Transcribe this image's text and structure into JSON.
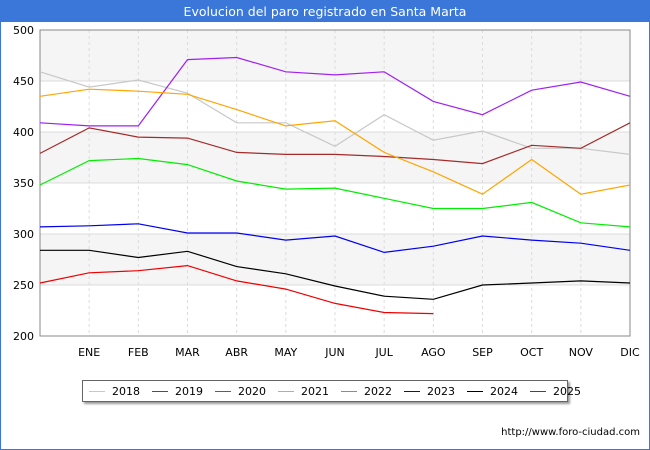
{
  "header": {
    "title": "Evolucion del paro registrado en Santa Marta"
  },
  "source": "http://www.foro-ciudad.com",
  "chart_data": {
    "type": "line",
    "x_categories": [
      "",
      "ENE",
      "FEB",
      "MAR",
      "ABR",
      "MAY",
      "JUN",
      "JUL",
      "AGO",
      "SEP",
      "OCT",
      "NOV",
      "DIC"
    ],
    "ylim": [
      200,
      500
    ],
    "yticks": [
      200,
      250,
      300,
      350,
      400,
      450,
      500
    ],
    "grid": true,
    "legend_position": "bottom",
    "series": [
      {
        "name": "2018",
        "color": "#c8c8c8",
        "values": [
          459,
          444,
          451,
          438,
          409,
          409,
          386,
          417,
          392,
          401,
          384,
          384,
          378
        ]
      },
      {
        "name": "2019",
        "color": "#a52a2a",
        "values": [
          379,
          404,
          395,
          394,
          380,
          378,
          378,
          376,
          373,
          369,
          387,
          384,
          409
        ]
      },
      {
        "name": "2020",
        "color": "#a020f0",
        "values": [
          409,
          406,
          406,
          471,
          473,
          459,
          456,
          459,
          430,
          417,
          441,
          449,
          435
        ]
      },
      {
        "name": "2021",
        "color": "#ffa500",
        "values": [
          435,
          442,
          440,
          437,
          422,
          406,
          411,
          380,
          361,
          339,
          373,
          339,
          348
        ]
      },
      {
        "name": "2022",
        "color": "#00ee00",
        "values": [
          348,
          372,
          374,
          368,
          352,
          344,
          345,
          335,
          325,
          325,
          331,
          311,
          307
        ]
      },
      {
        "name": "2023",
        "color": "#0000ee",
        "values": [
          307,
          308,
          310,
          301,
          301,
          294,
          298,
          282,
          288,
          298,
          294,
          291,
          284
        ]
      },
      {
        "name": "2024",
        "color": "#000000",
        "values": [
          284,
          284,
          277,
          283,
          268,
          261,
          249,
          239,
          236,
          250,
          252,
          254,
          252
        ]
      },
      {
        "name": "2025",
        "color": "#ee0000",
        "values": [
          252,
          262,
          264,
          269,
          254,
          246,
          232,
          223,
          222,
          null,
          null,
          null,
          null
        ]
      }
    ]
  }
}
